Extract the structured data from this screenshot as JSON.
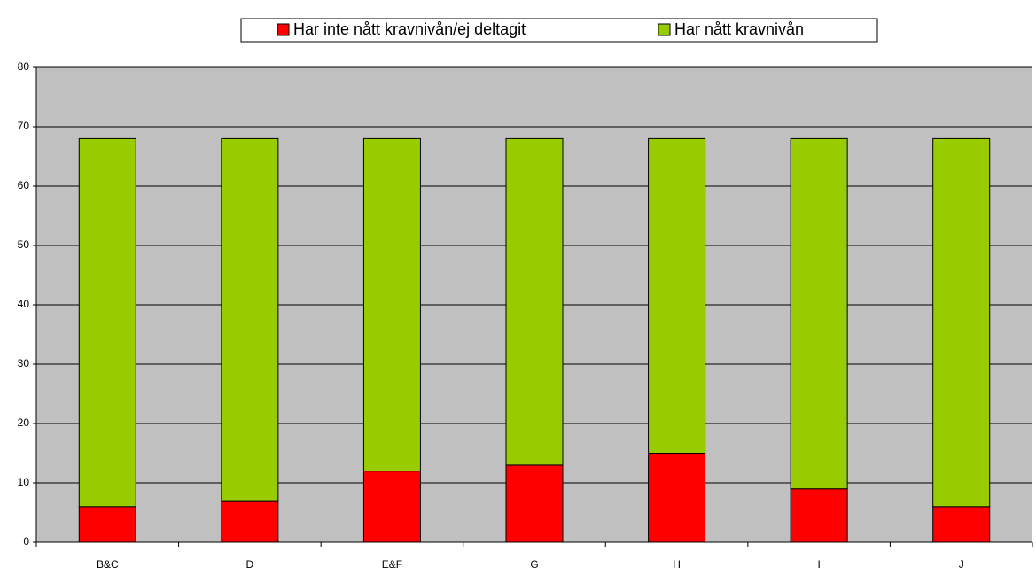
{
  "chart_data": {
    "type": "stacked_bar",
    "categories": [
      "B&C",
      "D",
      "E&F",
      "G",
      "H",
      "I",
      "J"
    ],
    "series": [
      {
        "name": "Har inte nått kravnivån/ej deltagit",
        "color": "#ff0000",
        "values": [
          6,
          7,
          12,
          13,
          15,
          9,
          6
        ]
      },
      {
        "name": "Har nått kravnivån",
        "color": "#99cc00",
        "values": [
          62,
          61,
          56,
          55,
          53,
          59,
          62
        ]
      }
    ],
    "ylim": [
      0,
      80
    ],
    "yticks": [
      0,
      10,
      20,
      30,
      40,
      50,
      60,
      70,
      80
    ],
    "grid": true,
    "legend": "top"
  }
}
